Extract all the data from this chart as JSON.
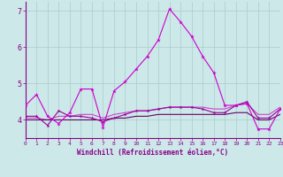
{
  "xlabel": "Windchill (Refroidissement éolien,°C)",
  "x": [
    0,
    1,
    2,
    3,
    4,
    5,
    6,
    7,
    8,
    9,
    10,
    11,
    12,
    13,
    14,
    15,
    16,
    17,
    18,
    19,
    20,
    21,
    22,
    23
  ],
  "line1": [
    4.4,
    4.7,
    4.1,
    3.9,
    4.2,
    4.85,
    4.85,
    3.8,
    4.8,
    5.05,
    5.4,
    5.75,
    6.2,
    7.05,
    6.7,
    6.3,
    5.75,
    5.3,
    4.4,
    4.4,
    4.45,
    3.75,
    3.75,
    4.3
  ],
  "line2": [
    4.1,
    4.1,
    3.85,
    4.25,
    4.1,
    4.1,
    4.05,
    3.95,
    4.05,
    4.15,
    4.25,
    4.25,
    4.3,
    4.35,
    4.35,
    4.35,
    4.3,
    4.2,
    4.2,
    4.4,
    4.5,
    4.05,
    4.05,
    4.3
  ],
  "line3": [
    4.05,
    4.05,
    4.0,
    4.1,
    4.1,
    4.15,
    4.15,
    4.05,
    4.15,
    4.2,
    4.25,
    4.25,
    4.3,
    4.35,
    4.35,
    4.35,
    4.35,
    4.3,
    4.3,
    4.4,
    4.45,
    4.15,
    4.15,
    4.35
  ],
  "line4": [
    4.0,
    4.0,
    4.0,
    4.0,
    4.0,
    4.0,
    4.0,
    4.0,
    4.05,
    4.05,
    4.1,
    4.1,
    4.15,
    4.15,
    4.15,
    4.15,
    4.15,
    4.15,
    4.15,
    4.2,
    4.2,
    4.0,
    4.0,
    4.15
  ],
  "bg_color": "#cce8e8",
  "line_color1": "#cc00cc",
  "line_color2": "#990099",
  "line_color3": "#cc44cc",
  "line_color4": "#660066",
  "grid_color": "#aacccc",
  "axis_color": "#880088",
  "text_color": "#880088",
  "ylim": [
    3.5,
    7.25
  ],
  "yticks": [
    4,
    5,
    6,
    7
  ],
  "xticks": [
    0,
    1,
    2,
    3,
    4,
    5,
    6,
    7,
    8,
    9,
    10,
    11,
    12,
    13,
    14,
    15,
    16,
    17,
    18,
    19,
    20,
    21,
    22,
    23
  ]
}
